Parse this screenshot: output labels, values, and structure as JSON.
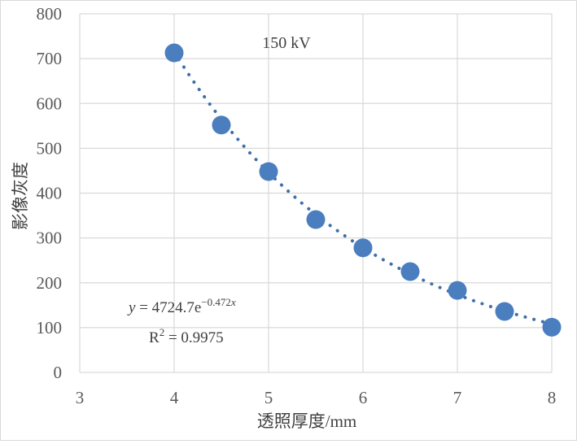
{
  "chart_data": {
    "type": "scatter",
    "title": "",
    "annotation": "150 kV",
    "xlabel": "透照厚度/mm",
    "ylabel": "影像灰度",
    "xlim": [
      3,
      8
    ],
    "ylim": [
      0,
      800
    ],
    "xticks": [
      "3",
      "4",
      "5",
      "6",
      "7",
      "8"
    ],
    "yticks": [
      "0",
      "100",
      "200",
      "300",
      "400",
      "500",
      "600",
      "700",
      "800"
    ],
    "grid": true,
    "series": [
      {
        "x": [
          4,
          4.5,
          5,
          5.5,
          6,
          6.5,
          7,
          7.5,
          8
        ],
        "y": [
          713,
          552,
          448,
          341,
          278,
          225,
          183,
          136,
          101
        ],
        "color": "#4a7ebf"
      }
    ],
    "trendline": {
      "type": "exponential",
      "a": 4724.7,
      "b": -0.472,
      "color": "#3d6faa",
      "equation": {
        "y_var": "y",
        "equals": " = 4724.7e",
        "exponent": "−0.472",
        "x_var": "x"
      },
      "r2": {
        "label": "R",
        "power": "2",
        "value": " = 0.9975"
      }
    }
  }
}
